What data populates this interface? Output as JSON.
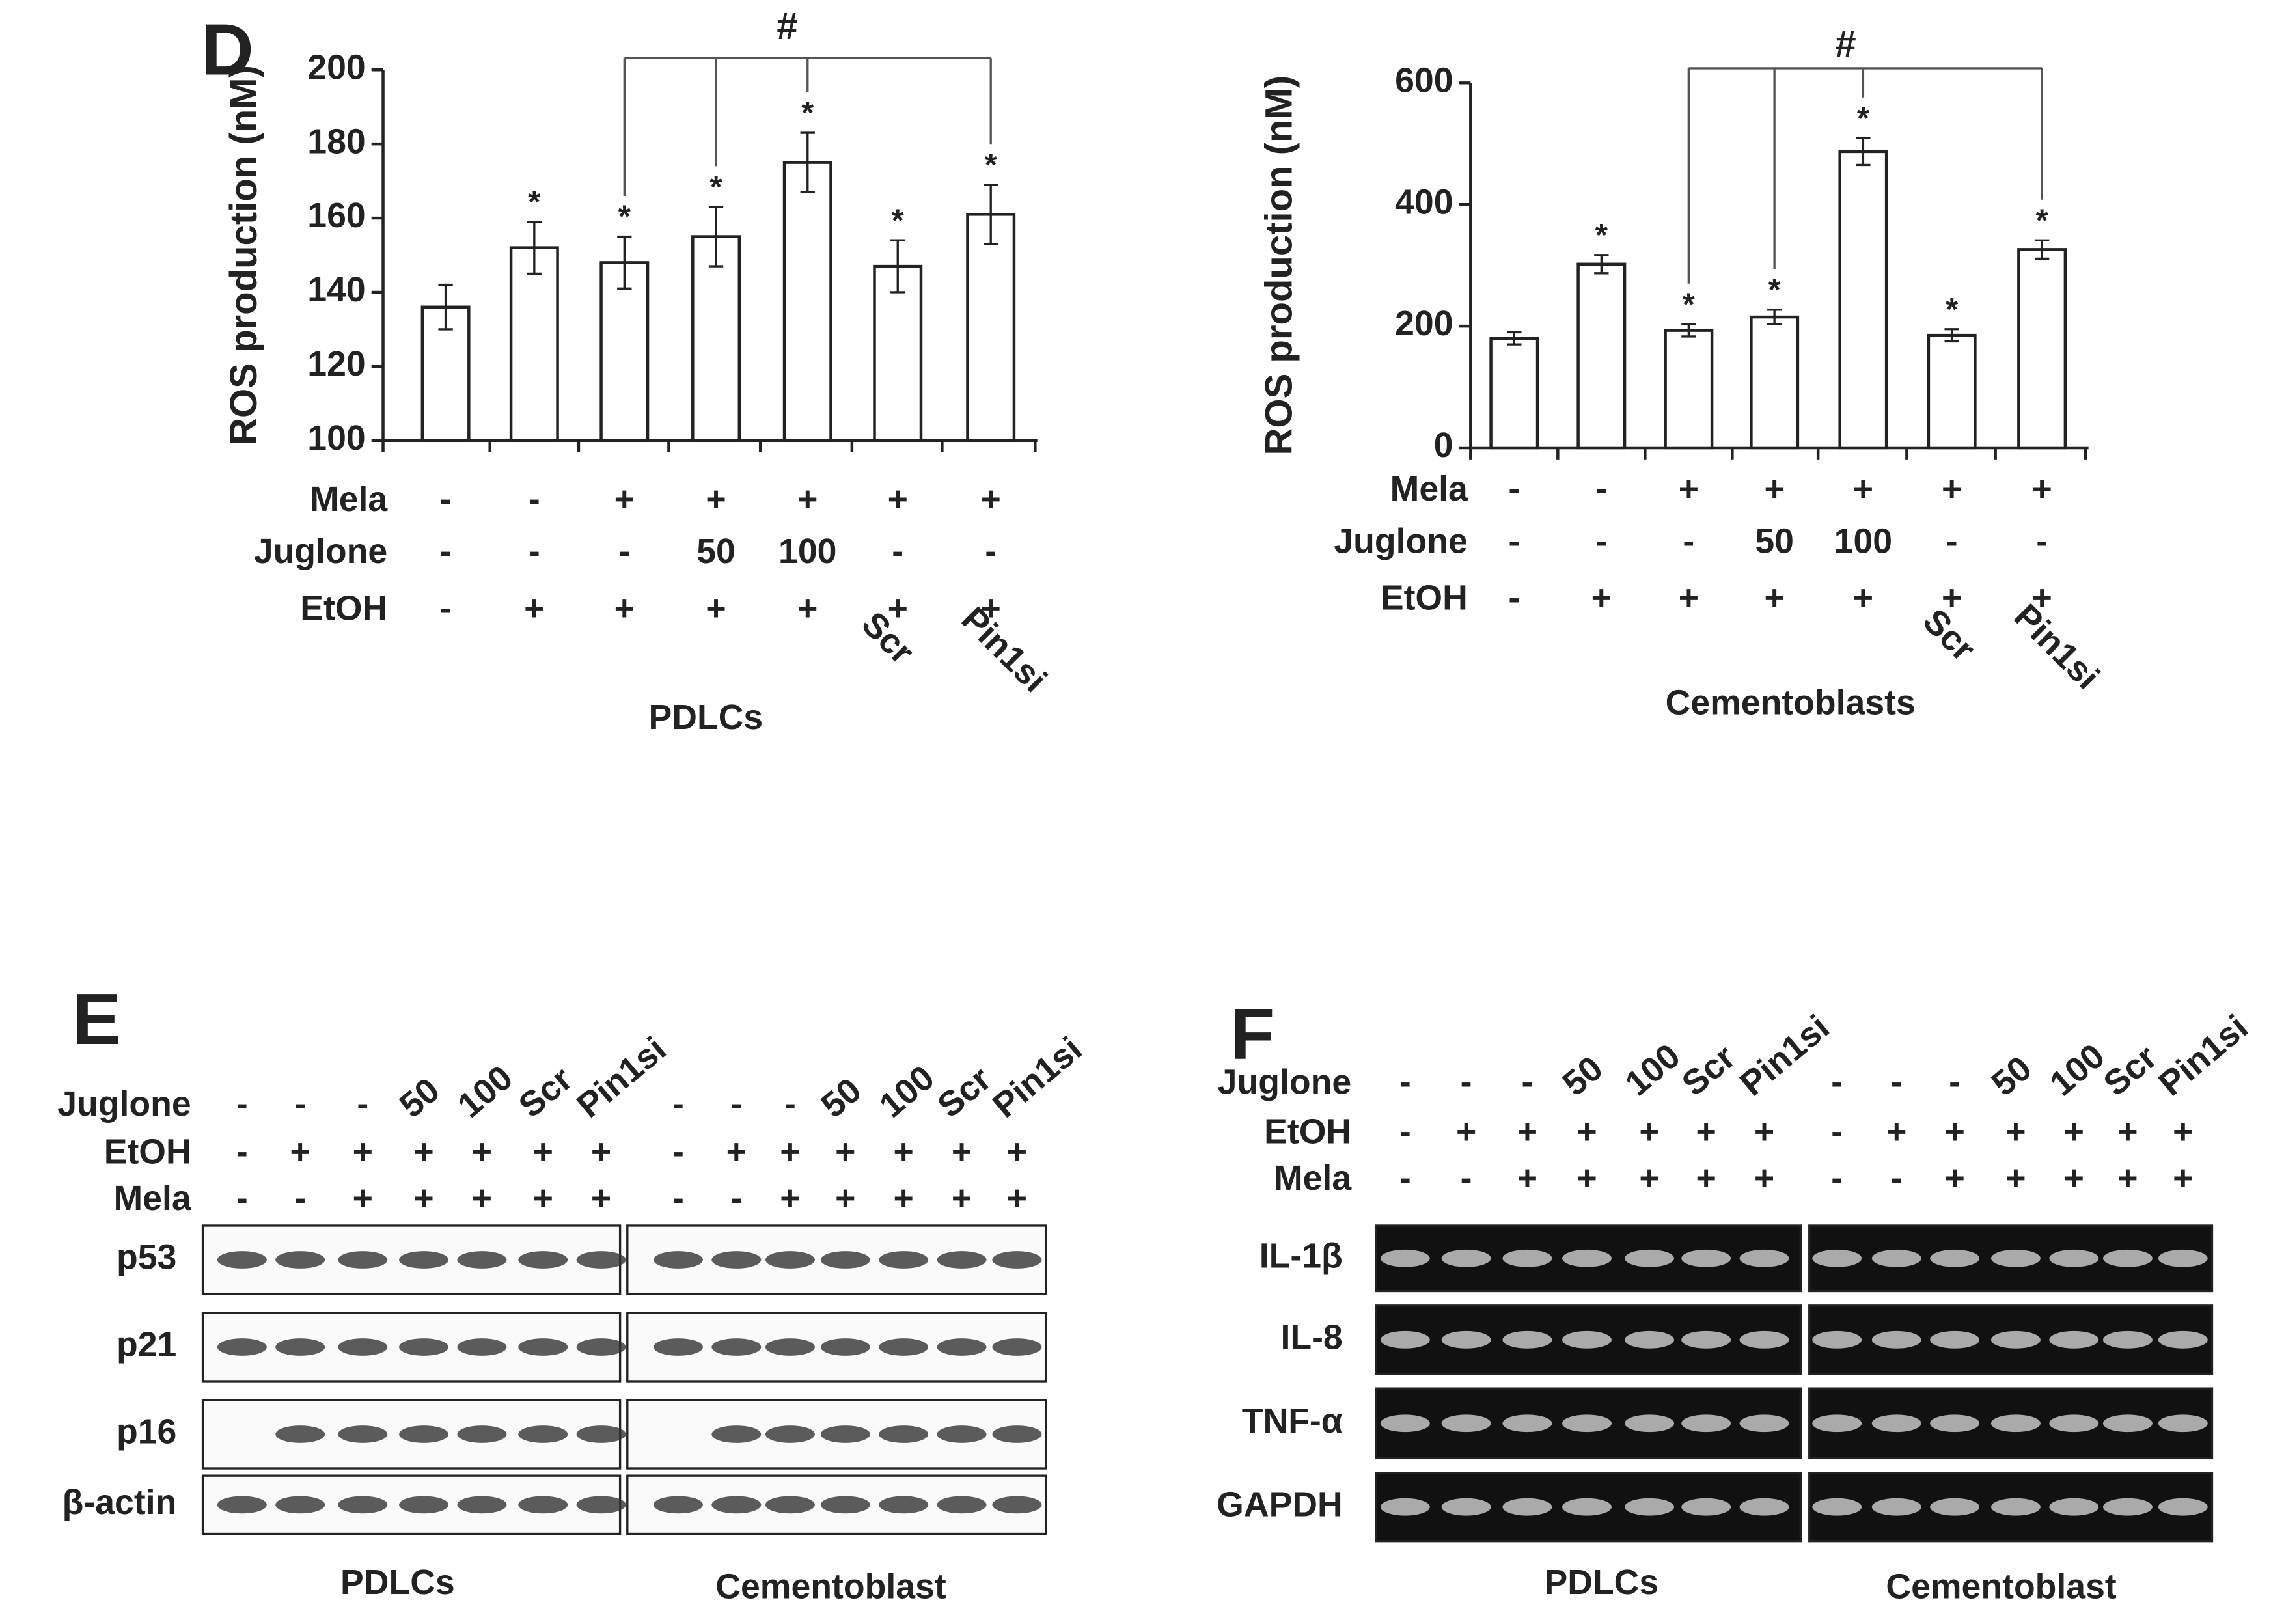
{
  "chart_data": [
    {
      "type": "bar",
      "panel": "D",
      "ylabel": "ROS production (nM)",
      "xlabel": "PDLCs",
      "ylim": [
        100,
        200
      ],
      "yticks": [
        100,
        120,
        140,
        160,
        180,
        200
      ],
      "series": [
        {
          "color": "#ffffff",
          "values": [
            136,
            152,
            148,
            155,
            175,
            147,
            161
          ],
          "errors": [
            6,
            7,
            7,
            8,
            8,
            7,
            8
          ]
        }
      ],
      "significance": [
        null,
        "*",
        "*",
        "*",
        "*",
        "*",
        "*"
      ],
      "bracket_label": "#",
      "treatment_rows": [
        {
          "name": "Mela",
          "labels": [
            "-",
            "-",
            "+",
            "+",
            "+",
            "+",
            "+"
          ]
        },
        {
          "name": "Juglone",
          "labels": [
            "-",
            "-",
            "-",
            "50",
            "100",
            "-",
            "-"
          ]
        },
        {
          "name": "EtOH",
          "labels": [
            "-",
            "+",
            "+",
            "+",
            "+",
            "+",
            "+"
          ]
        }
      ],
      "extra_labels": [
        null,
        null,
        null,
        null,
        null,
        "Scr",
        "Pin1si"
      ]
    },
    {
      "type": "bar",
      "ylabel": "ROS production (nM)",
      "xlabel": "Cementoblasts",
      "ylim": [
        0,
        600
      ],
      "yticks": [
        0,
        200,
        400,
        600
      ],
      "series": [
        {
          "color": "#ffffff",
          "values": [
            180,
            302,
            193,
            215,
            487,
            185,
            326
          ],
          "errors": [
            10,
            15,
            10,
            12,
            22,
            10,
            15
          ]
        }
      ],
      "significance": [
        null,
        "*",
        "*",
        "*",
        "*",
        "*",
        "*"
      ],
      "bracket_label": "#",
      "treatment_rows": [
        {
          "name": "Mela",
          "labels": [
            "-",
            "-",
            "+",
            "+",
            "+",
            "+",
            "+"
          ]
        },
        {
          "name": "Juglone",
          "labels": [
            "-",
            "-",
            "-",
            "50",
            "100",
            "-",
            "-"
          ]
        },
        {
          "name": "EtOH",
          "labels": [
            "-",
            "+",
            "+",
            "+",
            "+",
            "+",
            "+"
          ]
        }
      ],
      "extra_labels": [
        null,
        null,
        null,
        null,
        null,
        "Scr",
        "Pin1si"
      ]
    }
  ],
  "blots": [
    {
      "panel": "E",
      "conditions": [
        {
          "name": "Juglone",
          "labels": [
            "-",
            "-",
            "-",
            "50",
            "100",
            "Scr",
            "Pin1si"
          ]
        },
        {
          "name": "EtOH",
          "labels": [
            "-",
            "+",
            "+",
            "+",
            "+",
            "+",
            "+"
          ]
        },
        {
          "name": "Mela",
          "labels": [
            "-",
            "-",
            "+",
            "+",
            "+",
            "+",
            "+"
          ]
        }
      ],
      "proteins": [
        "p53",
        "p21",
        "p16",
        "β-actin"
      ],
      "groups": [
        "PDLCs",
        "Cementoblast"
      ]
    },
    {
      "panel": "F",
      "conditions": [
        {
          "name": "Juglone",
          "labels": [
            "-",
            "-",
            "-",
            "50",
            "100",
            "Scr",
            "Pin1si"
          ]
        },
        {
          "name": "EtOH",
          "labels": [
            "-",
            "+",
            "+",
            "+",
            "+",
            "+",
            "+"
          ]
        },
        {
          "name": "Mela",
          "labels": [
            "-",
            "-",
            "+",
            "+",
            "+",
            "+",
            "+"
          ]
        }
      ],
      "proteins": [
        "IL-1β",
        "IL-8",
        "TNF-α",
        "GAPDH"
      ],
      "groups": [
        "PDLCs",
        "Cementoblast"
      ]
    }
  ]
}
